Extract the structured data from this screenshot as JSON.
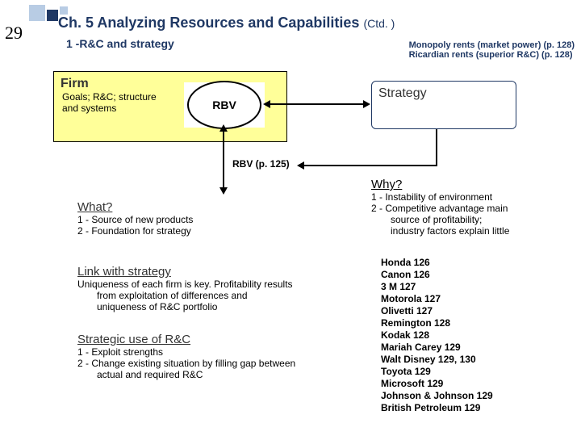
{
  "page_number": "29",
  "title_main": "Ch. 5 Analyzing Resources and Capabilities",
  "title_ctd": "(Ctd. )",
  "subtitle": "1 -R&C and strategy",
  "rents_line1": "Monopoly rents (market power) (p. 128)",
  "rents_line2": "Ricardian rents (superior R&C) (p. 128)",
  "firm": {
    "title": "Firm",
    "desc1": "Goals; R&C; structure",
    "desc2": "and systems"
  },
  "rbv_oval": "RBV",
  "strategy_label": "Strategy",
  "rbv_label": "RBV (p. 125)",
  "what": {
    "title": "What?",
    "l1": "1 - Source of new products",
    "l2": "2 - Foundation for strategy"
  },
  "link": {
    "title": "Link with strategy",
    "p1": "Uniqueness of each firm is key. Profitability results",
    "p2": "from exploitation of differences and",
    "p3": "uniqueness of R&C portfolio"
  },
  "stratuse": {
    "title": "Strategic use of R&C",
    "l1": "1 - Exploit strengths",
    "l2a": "2 - Change existing situation by filling gap between",
    "l2b": "actual and required R&C"
  },
  "why": {
    "title": "Why?",
    "l1": "1 - Instability of environment",
    "l2a": "2 - Competitive advantage main",
    "l2b": "source of profitability;",
    "l2c": "industry factors explain little"
  },
  "examples": [
    "Honda 126",
    "Canon 126",
    "3 M 127",
    "Motorola 127",
    "Olivetti 127",
    "Remington 128",
    "Kodak 128",
    "Mariah Carey 129",
    "Walt Disney 129, 130",
    "Toyota 129",
    "Microsoft 129",
    "Johnson & Johnson 129",
    "British Petroleum 129"
  ],
  "colors": {
    "navy": "#1f3864",
    "panel": "#ffff99",
    "lightsq": "#b8cce4"
  }
}
